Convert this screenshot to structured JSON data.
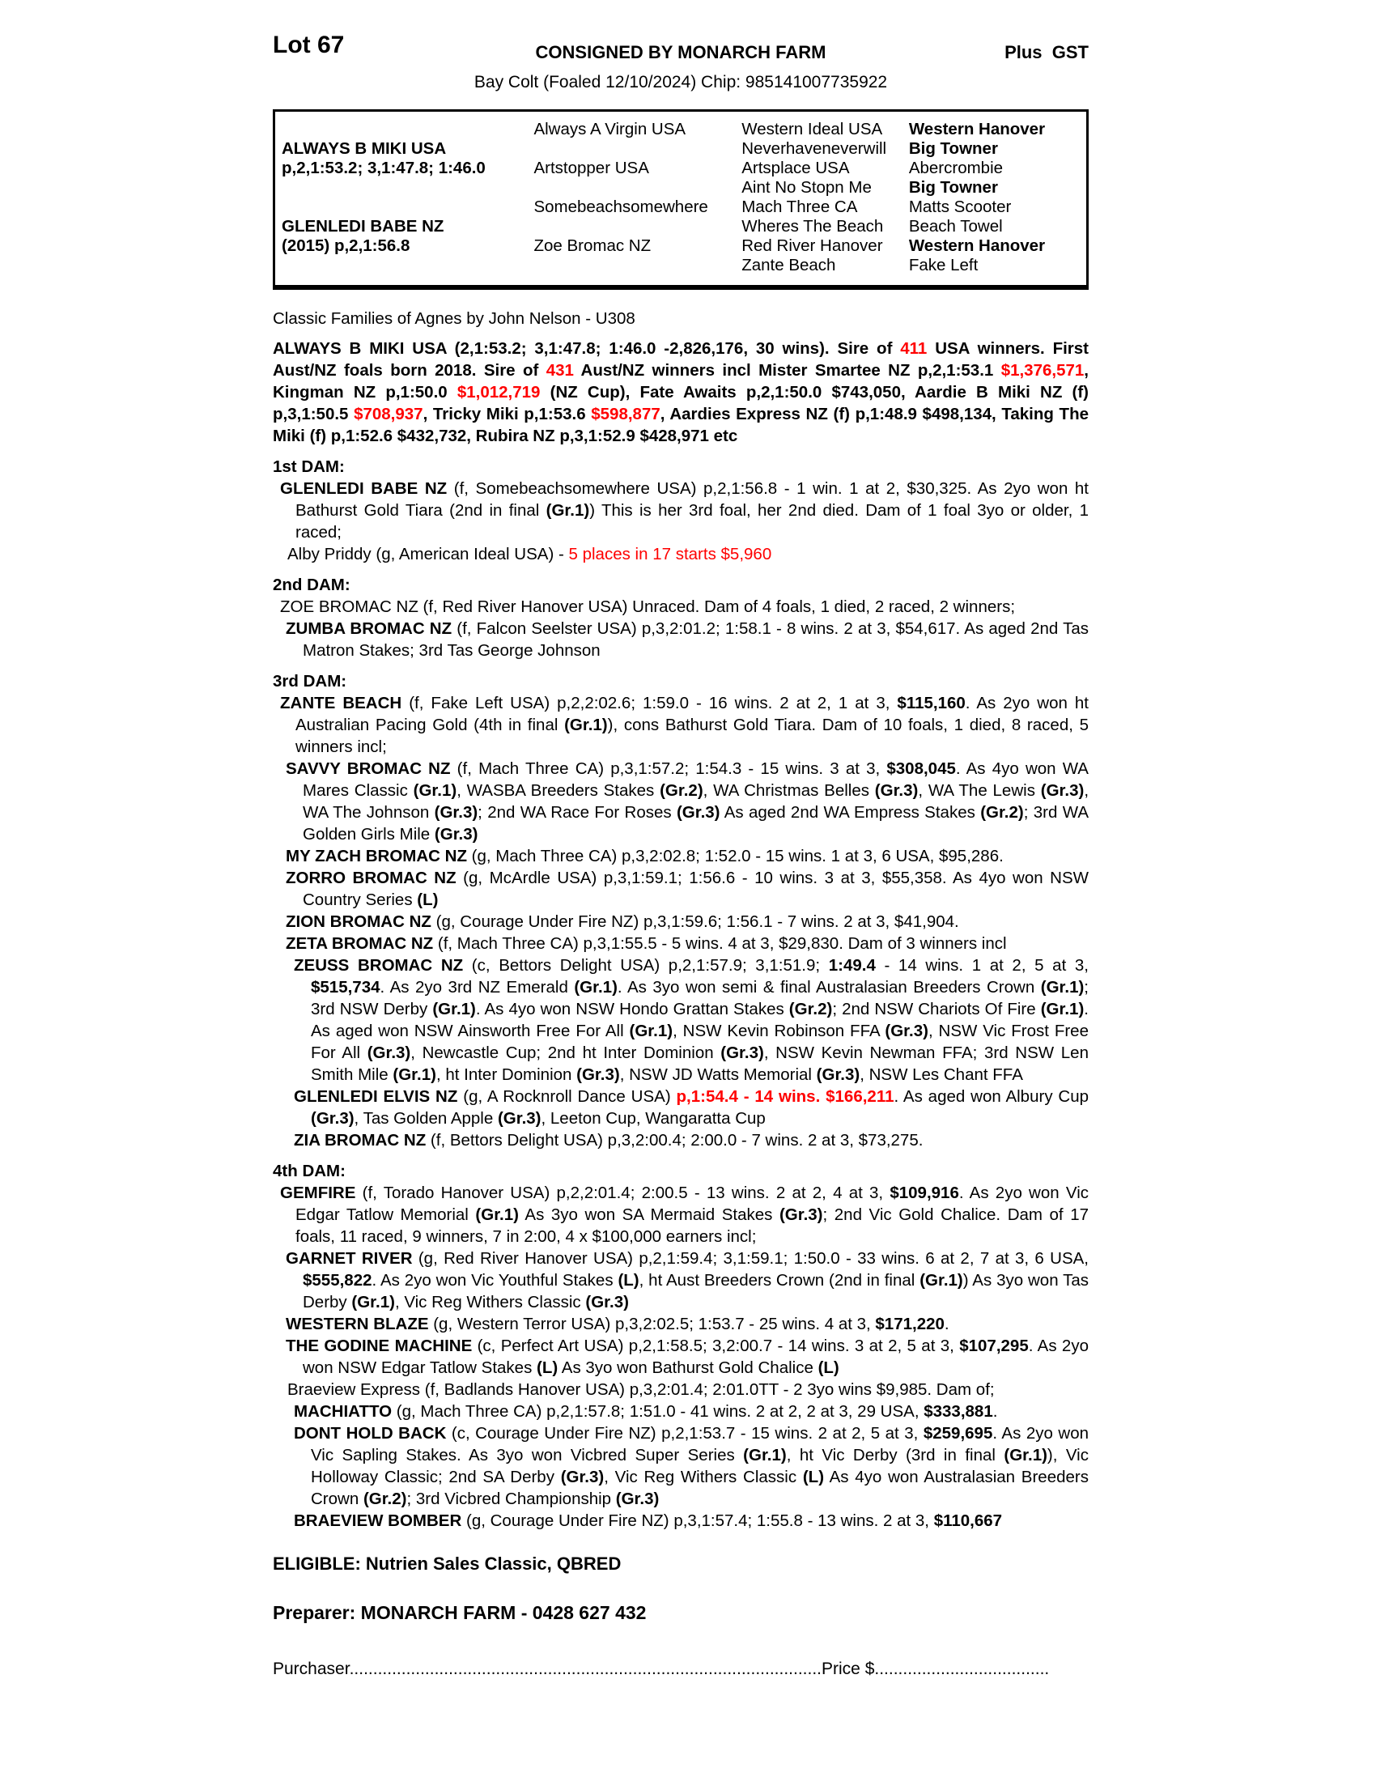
{
  "colors": {
    "accent_red": "#ff0000"
  },
  "header": {
    "lot": "Lot 67",
    "consigned": "CONSIGNED BY MONARCH FARM",
    "gst": "Plus  GST",
    "subtitle": "Bay Colt (Foaled 12/10/2024) Chip: 985141007735922"
  },
  "pedigree": {
    "rows": [
      [
        {
          "t": ""
        },
        {
          "t": "Always A Virgin USA"
        },
        {
          "t": "Western Ideal USA"
        },
        {
          "t": "Western Hanover",
          "b": true
        }
      ],
      [
        {
          "t": "ALWAYS B MIKI USA",
          "b": true
        },
        {
          "t": ""
        },
        {
          "t": "Neverhaveneverwill"
        },
        {
          "t": "Big Towner",
          "b": true
        }
      ],
      [
        {
          "t": "p,2,1:53.2; 3,1:47.8; 1:46.0",
          "b": true
        },
        {
          "t": "Artstopper USA"
        },
        {
          "t": "Artsplace USA"
        },
        {
          "t": "Abercrombie"
        }
      ],
      [
        {
          "t": ""
        },
        {
          "t": ""
        },
        {
          "t": "Aint No Stopn Me"
        },
        {
          "t": "Big Towner",
          "b": true
        }
      ],
      [
        {
          "t": ""
        },
        {
          "t": "Somebeachsomewhere"
        },
        {
          "t": "Mach Three CA"
        },
        {
          "t": "Matts Scooter"
        }
      ],
      [
        {
          "t": "GLENLEDI BABE NZ",
          "b": true
        },
        {
          "t": ""
        },
        {
          "t": "Wheres The Beach"
        },
        {
          "t": "Beach Towel"
        }
      ],
      [
        {
          "t": "(2015) p,2,1:56.8",
          "b": true
        },
        {
          "t": "Zoe Bromac NZ"
        },
        {
          "t": "Red River Hanover"
        },
        {
          "t": "Western Hanover",
          "b": true
        }
      ],
      [
        {
          "t": ""
        },
        {
          "t": ""
        },
        {
          "t": "Zante Beach"
        },
        {
          "t": "Fake Left"
        }
      ]
    ]
  },
  "family_reference": "Classic Families of Agnes by John Nelson - U308",
  "sire_note": {
    "segments": [
      {
        "t": "ALWAYS B MIKI USA (2,1:53.2; 3,1:47.8; 1:46.0 -2,826,176, 30 wins). Sire of "
      },
      {
        "t": "411",
        "r": true
      },
      {
        "t": " USA winners. First Aust/NZ foals born 2018. Sire of "
      },
      {
        "t": "431",
        "r": true
      },
      {
        "t": " Aust/NZ winners incl Mister Smartee NZ p,2,1:53.1 "
      },
      {
        "t": "$1,376,571",
        "r": true
      },
      {
        "t": ", Kingman NZ p,1:50.0 "
      },
      {
        "t": "$1,012,719",
        "r": true
      },
      {
        "t": " (NZ Cup), Fate Awaits p,2,1:50.0 $743,050, Aardie B Miki NZ (f) p,3,1:50.5 "
      },
      {
        "t": "$708,937",
        "r": true
      },
      {
        "t": ", Tricky Miki p,1:53.6 "
      },
      {
        "t": "$598,877",
        "r": true
      },
      {
        "t": ", Aardies Express NZ (f) p,1:48.9 $498,134, Taking The Miki (f) p,1:52.6 $432,732, Rubira NZ p,3,1:52.9 $428,971 etc"
      }
    ]
  },
  "sections": [
    {
      "title": "1st DAM:",
      "entries": [
        {
          "indent": "1",
          "segments": [
            {
              "t": "GLENLEDI BABE NZ",
              "b": true
            },
            {
              "t": " (f, Somebeachsomewhere USA) p,2,1:56.8 - 1 win. 1 at 2, $30,325. As 2yo won ht Bathurst Gold Tiara (2nd in final "
            },
            {
              "t": "(Gr.1)",
              "b": true
            },
            {
              "t": ") This is her 3rd foal, her 2nd died. Dam of 1 foal 3yo or older, 1 raced;"
            }
          ]
        },
        {
          "indent": "1b",
          "segments": [
            {
              "t": "Alby Priddy (g, American Ideal USA) - "
            },
            {
              "t": "5 places in 17 starts $5,960",
              "r": true
            }
          ]
        }
      ]
    },
    {
      "title": "2nd DAM:",
      "entries": [
        {
          "indent": "1",
          "segments": [
            {
              "t": "ZOE BROMAC NZ (f, Red River Hanover USA) Unraced. Dam of 4 foals, 1 died, 2 raced, 2 winners;"
            }
          ]
        },
        {
          "indent": "2",
          "segments": [
            {
              "t": "ZUMBA BROMAC NZ",
              "b": true
            },
            {
              "t": " (f, Falcon Seelster USA) p,3,2:01.2; 1:58.1 - 8 wins. 2 at 3, $54,617. As aged 2nd Tas Matron Stakes; 3rd Tas George Johnson"
            }
          ]
        }
      ]
    },
    {
      "title": "3rd DAM:",
      "entries": [
        {
          "indent": "1",
          "segments": [
            {
              "t": "ZANTE BEACH",
              "b": true
            },
            {
              "t": " (f, Fake Left USA) p,2,2:02.6; 1:59.0 - 16 wins. 2 at 2, 1 at 3, "
            },
            {
              "t": "$115,160",
              "b": true
            },
            {
              "t": ". As 2yo won ht Australian Pacing Gold (4th in final "
            },
            {
              "t": "(Gr.1)",
              "b": true
            },
            {
              "t": "), cons Bathurst Gold Tiara. Dam of 10 foals, 1 died, 8 raced, 5 winners incl;"
            }
          ]
        },
        {
          "indent": "2",
          "segments": [
            {
              "t": "SAVVY BROMAC NZ",
              "b": true
            },
            {
              "t": " (f, Mach Three CA) p,3,1:57.2; 1:54.3 - 15 wins. 3 at 3, "
            },
            {
              "t": "$308,045",
              "b": true
            },
            {
              "t": ". As 4yo won WA Mares Classic "
            },
            {
              "t": "(Gr.1)",
              "b": true
            },
            {
              "t": ", WASBA Breeders Stakes "
            },
            {
              "t": "(Gr.2)",
              "b": true
            },
            {
              "t": ", WA Christmas Belles "
            },
            {
              "t": "(Gr.3)",
              "b": true
            },
            {
              "t": ", WA The Lewis "
            },
            {
              "t": "(Gr.3)",
              "b": true
            },
            {
              "t": ", WA The Johnson "
            },
            {
              "t": "(Gr.3)",
              "b": true
            },
            {
              "t": "; 2nd WA Race For Roses "
            },
            {
              "t": "(Gr.3)",
              "b": true
            },
            {
              "t": " As aged 2nd WA Empress Stakes "
            },
            {
              "t": "(Gr.2)",
              "b": true
            },
            {
              "t": "; 3rd WA Golden Girls Mile "
            },
            {
              "t": "(Gr.3)",
              "b": true
            }
          ]
        },
        {
          "indent": "2",
          "segments": [
            {
              "t": "MY ZACH BROMAC NZ",
              "b": true
            },
            {
              "t": " (g, Mach Three CA) p,3,2:02.8; 1:52.0 - 15 wins. 1 at 3, 6 USA, $95,286."
            }
          ]
        },
        {
          "indent": "2",
          "segments": [
            {
              "t": "ZORRO BROMAC NZ",
              "b": true
            },
            {
              "t": " (g, McArdle USA) p,3,1:59.1; 1:56.6 - 10 wins. 3 at 3, $55,358. As 4yo won NSW Country Series "
            },
            {
              "t": "(L)",
              "b": true
            }
          ]
        },
        {
          "indent": "2",
          "segments": [
            {
              "t": "ZION BROMAC NZ",
              "b": true
            },
            {
              "t": " (g, Courage Under Fire NZ) p,3,1:59.6; 1:56.1 - 7 wins. 2 at 3, $41,904."
            }
          ]
        },
        {
          "indent": "2",
          "segments": [
            {
              "t": "ZETA BROMAC NZ",
              "b": true
            },
            {
              "t": " (f, Mach Three CA) p,3,1:55.5 - 5 wins. 4 at 3, $29,830. Dam of 3 winners incl"
            }
          ]
        },
        {
          "indent": "3",
          "segments": [
            {
              "t": "ZEUSS BROMAC NZ",
              "b": true
            },
            {
              "t": " (c, Bettors Delight USA) p,2,1:57.9; 3,1:51.9; "
            },
            {
              "t": "1:49.4",
              "b": true
            },
            {
              "t": " - 14 wins. 1 at 2, 5 at 3, "
            },
            {
              "t": "$515,734",
              "b": true
            },
            {
              "t": ". As 2yo 3rd NZ Emerald "
            },
            {
              "t": "(Gr.1)",
              "b": true
            },
            {
              "t": ". As 3yo won semi & final Australasian Breeders Crown "
            },
            {
              "t": "(Gr.1)",
              "b": true
            },
            {
              "t": "; 3rd NSW Derby "
            },
            {
              "t": "(Gr.1)",
              "b": true
            },
            {
              "t": ". As 4yo won NSW Hondo Grattan Stakes "
            },
            {
              "t": "(Gr.2)",
              "b": true
            },
            {
              "t": "; 2nd NSW Chariots Of Fire "
            },
            {
              "t": "(Gr.1)",
              "b": true
            },
            {
              "t": ". As aged won NSW Ainsworth Free For All "
            },
            {
              "t": "(Gr.1)",
              "b": true
            },
            {
              "t": ", NSW Kevin Robinson FFA "
            },
            {
              "t": "(Gr.3)",
              "b": true
            },
            {
              "t": ", NSW Vic Frost Free For All "
            },
            {
              "t": "(Gr.3)",
              "b": true
            },
            {
              "t": ", Newcastle Cup; 2nd ht Inter Dominion "
            },
            {
              "t": "(Gr.3)",
              "b": true
            },
            {
              "t": ", NSW Kevin Newman FFA; 3rd NSW Len Smith Mile "
            },
            {
              "t": "(Gr.1)",
              "b": true
            },
            {
              "t": ", ht Inter Dominion "
            },
            {
              "t": "(Gr.3)",
              "b": true
            },
            {
              "t": ", NSW JD Watts Memorial "
            },
            {
              "t": "(Gr.3)",
              "b": true
            },
            {
              "t": ", NSW Les Chant FFA"
            }
          ]
        },
        {
          "indent": "3",
          "segments": [
            {
              "t": "GLENLEDI ELVIS NZ",
              "b": true
            },
            {
              "t": " (g, A Rocknroll Dance USA) "
            },
            {
              "t": "p,1:54.4 - 14 wins. $166,211",
              "b": true,
              "r": true
            },
            {
              "t": ". As aged won Albury Cup "
            },
            {
              "t": "(Gr.3)",
              "b": true
            },
            {
              "t": ", Tas Golden Apple "
            },
            {
              "t": "(Gr.3)",
              "b": true
            },
            {
              "t": ", Leeton Cup, Wangaratta Cup"
            }
          ]
        },
        {
          "indent": "3",
          "segments": [
            {
              "t": "ZIA BROMAC NZ",
              "b": true
            },
            {
              "t": " (f, Bettors Delight USA) p,3,2:00.4; 2:00.0 - 7 wins. 2 at 3, $73,275."
            }
          ]
        }
      ]
    },
    {
      "title": "4th DAM:",
      "entries": [
        {
          "indent": "1",
          "segments": [
            {
              "t": "GEMFIRE",
              "b": true
            },
            {
              "t": " (f, Torado Hanover USA) p,2,2:01.4; 2:00.5 - 13 wins. 2 at 2, 4 at 3, "
            },
            {
              "t": "$109,916",
              "b": true
            },
            {
              "t": ". As 2yo won Vic Edgar Tatlow Memorial "
            },
            {
              "t": "(Gr.1)",
              "b": true
            },
            {
              "t": " As 3yo won SA Mermaid Stakes "
            },
            {
              "t": "(Gr.3)",
              "b": true
            },
            {
              "t": "; 2nd Vic Gold Chalice. Dam of 17 foals, 11 raced, 9 winners, 7 in 2:00, 4 x $100,000 earners incl;"
            }
          ]
        },
        {
          "indent": "2",
          "segments": [
            {
              "t": "GARNET RIVER",
              "b": true
            },
            {
              "t": " (g, Red River Hanover USA) p,2,1:59.4; 3,1:59.1; 1:50.0 - 33 wins. 6 at 2, 7 at 3, 6 USA, "
            },
            {
              "t": "$555,822",
              "b": true
            },
            {
              "t": ". As 2yo won Vic Youthful Stakes "
            },
            {
              "t": "(L)",
              "b": true
            },
            {
              "t": ", ht Aust Breeders Crown (2nd in final "
            },
            {
              "t": "(Gr.1)",
              "b": true
            },
            {
              "t": ") As 3yo won Tas Derby "
            },
            {
              "t": "(Gr.1)",
              "b": true
            },
            {
              "t": ", Vic Reg Withers Classic "
            },
            {
              "t": "(Gr.3)",
              "b": true
            }
          ]
        },
        {
          "indent": "2",
          "segments": [
            {
              "t": "WESTERN BLAZE",
              "b": true
            },
            {
              "t": " (g, Western Terror USA) p,3,2:02.5; 1:53.7 - 25 wins. 4 at 3, "
            },
            {
              "t": "$171,220",
              "b": true
            },
            {
              "t": "."
            }
          ]
        },
        {
          "indent": "2",
          "segments": [
            {
              "t": "THE GODINE MACHINE",
              "b": true
            },
            {
              "t": " (c, Perfect Art USA) p,2,1:58.5; 3,2:00.7 - 14 wins. 3 at 2, 5 at 3, "
            },
            {
              "t": "$107,295",
              "b": true
            },
            {
              "t": ". As 2yo won NSW Edgar Tatlow Stakes "
            },
            {
              "t": "(L)",
              "b": true
            },
            {
              "t": " As 3yo won Bathurst Gold Chalice "
            },
            {
              "t": "(L)",
              "b": true
            }
          ]
        },
        {
          "indent": "1b",
          "segments": [
            {
              "t": "Braeview Express (f, Badlands Hanover USA) p,3,2:01.4; 2:01.0TT - 2 3yo wins $9,985. Dam of;"
            }
          ]
        },
        {
          "indent": "3",
          "segments": [
            {
              "t": "MACHIATTO",
              "b": true
            },
            {
              "t": " (g, Mach Three CA) p,2,1:57.8; 1:51.0 - 41 wins. 2 at 2, 2 at 3, 29 USA, "
            },
            {
              "t": "$333,881",
              "b": true
            },
            {
              "t": "."
            }
          ]
        },
        {
          "indent": "3",
          "segments": [
            {
              "t": "DONT HOLD BACK",
              "b": true
            },
            {
              "t": " (c, Courage Under Fire NZ) p,2,1:53.7 - 15 wins. 2 at 2, 5 at 3, "
            },
            {
              "t": "$259,695",
              "b": true
            },
            {
              "t": ". As 2yo won Vic Sapling Stakes. As 3yo won Vicbred Super Series "
            },
            {
              "t": "(Gr.1)",
              "b": true
            },
            {
              "t": ", ht Vic Derby (3rd in final "
            },
            {
              "t": "(Gr.1)",
              "b": true
            },
            {
              "t": "), Vic Holloway Classic; 2nd SA Derby "
            },
            {
              "t": "(Gr.3)",
              "b": true
            },
            {
              "t": ", Vic Reg Withers Classic "
            },
            {
              "t": "(L)",
              "b": true
            },
            {
              "t": " As 4yo won Australasian Breeders Crown "
            },
            {
              "t": "(Gr.2)",
              "b": true
            },
            {
              "t": "; 3rd Vicbred Championship "
            },
            {
              "t": "(Gr.3)",
              "b": true
            }
          ]
        },
        {
          "indent": "3",
          "segments": [
            {
              "t": "BRAEVIEW BOMBER",
              "b": true
            },
            {
              "t": " (g, Courage Under Fire NZ) p,3,1:57.4; 1:55.8 - 13 wins. 2 at 3, "
            },
            {
              "t": "$110,667",
              "b": true
            }
          ]
        }
      ]
    }
  ],
  "footer": {
    "eligible": "ELIGIBLE: Nutrien Sales Classic, QBRED",
    "preparer": "Preparer: MONARCH FARM - 0428 627 432",
    "purchaser_label": "Purchaser",
    "purchaser_dots": "....................................................................................................",
    "price_label": "Price $",
    "price_dots": "....................................."
  }
}
